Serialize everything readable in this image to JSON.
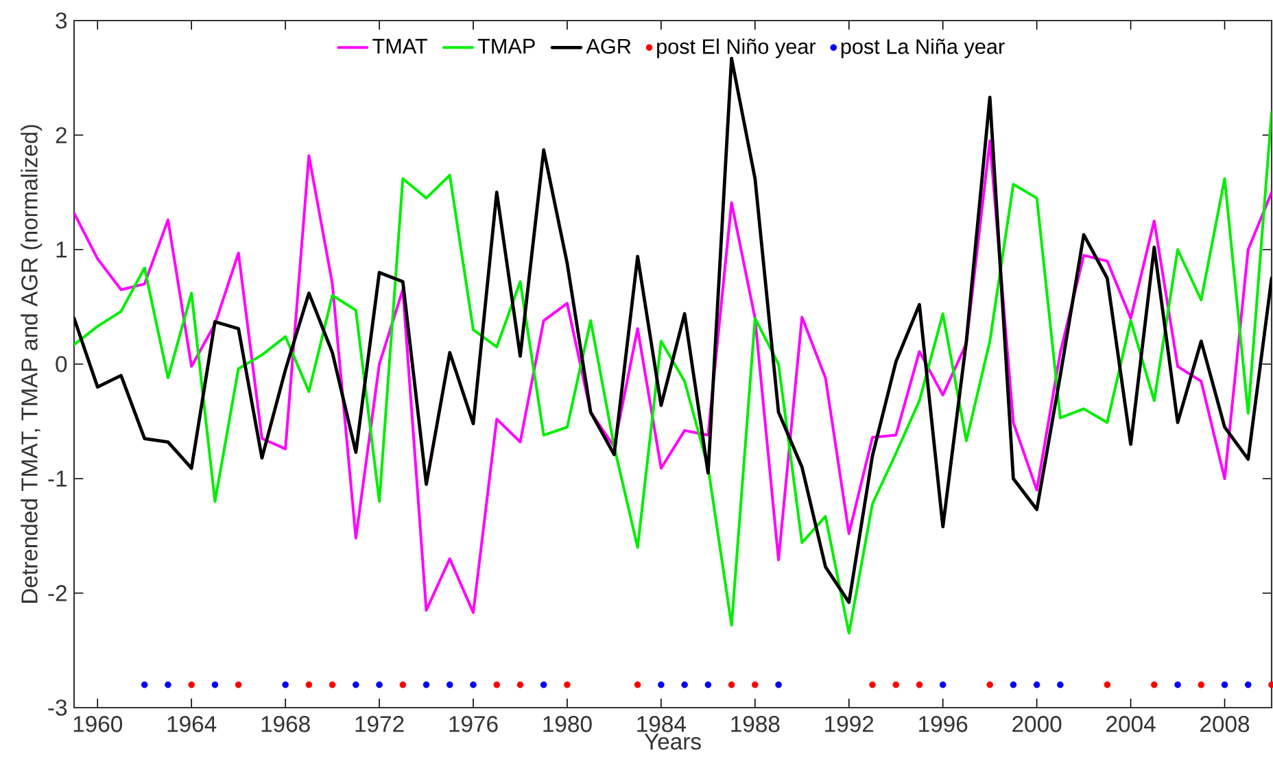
{
  "chart_data": {
    "type": "line",
    "xlabel": "Years",
    "ylabel": "Detrended TMAT, TMAP and AGR (normalized)",
    "x": [
      1959,
      1960,
      1961,
      1962,
      1963,
      1964,
      1965,
      1966,
      1967,
      1968,
      1969,
      1970,
      1971,
      1972,
      1973,
      1974,
      1975,
      1976,
      1977,
      1978,
      1979,
      1980,
      1981,
      1982,
      1983,
      1984,
      1985,
      1986,
      1987,
      1988,
      1989,
      1990,
      1991,
      1992,
      1993,
      1994,
      1995,
      1996,
      1997,
      1998,
      1999,
      2000,
      2001,
      2002,
      2003,
      2004,
      2005,
      2006,
      2007,
      2008,
      2009,
      2010
    ],
    "series": [
      {
        "name": "TMAT",
        "color": "#ff00ff",
        "values": [
          1.32,
          0.92,
          0.65,
          0.7,
          1.26,
          -0.02,
          0.35,
          0.97,
          -0.65,
          -0.74,
          1.82,
          0.7,
          -1.52,
          0.0,
          0.65,
          -2.15,
          -1.7,
          -2.17,
          -0.48,
          -0.68,
          0.38,
          0.53,
          -0.42,
          -0.72,
          0.31,
          -0.91,
          -0.58,
          -0.62,
          1.41,
          0.4,
          -1.71,
          0.41,
          -0.12,
          -1.48,
          -0.64,
          -0.62,
          0.11,
          -0.27,
          0.18,
          1.95,
          -0.51,
          -1.1,
          0.1,
          0.95,
          0.9,
          0.4,
          1.25,
          -0.02,
          -0.15,
          -1.0,
          1.0,
          1.5
        ]
      },
      {
        "name": "TMAP",
        "color": "#00ee00",
        "values": [
          0.17,
          0.33,
          0.46,
          0.84,
          -0.12,
          0.62,
          -1.2,
          -0.04,
          0.08,
          0.24,
          -0.24,
          0.6,
          0.47,
          -1.2,
          1.62,
          1.45,
          1.65,
          0.3,
          0.15,
          0.72,
          -0.62,
          -0.55,
          0.38,
          -0.72,
          -1.6,
          0.2,
          -0.15,
          -0.9,
          -2.28,
          0.4,
          0.0,
          -1.56,
          -1.33,
          -2.35,
          -1.22,
          -0.78,
          -0.32,
          0.44,
          -0.67,
          0.2,
          1.57,
          1.45,
          -0.47,
          -0.39,
          -0.51,
          0.38,
          -0.32,
          1.0,
          0.56,
          1.62,
          -0.43,
          2.2
        ]
      },
      {
        "name": "AGR",
        "color": "#000000",
        "values": [
          0.4,
          -0.2,
          -0.1,
          -0.65,
          -0.68,
          -0.91,
          0.37,
          0.31,
          -0.82,
          -0.05,
          0.62,
          0.1,
          -0.77,
          0.8,
          0.72,
          -1.05,
          0.1,
          -0.52,
          1.5,
          0.07,
          1.87,
          0.88,
          -0.42,
          -0.79,
          0.94,
          -0.36,
          0.44,
          -0.95,
          2.67,
          1.62,
          -0.42,
          -0.9,
          -1.77,
          -2.08,
          -0.8,
          0.02,
          0.52,
          -1.42,
          0.2,
          2.33,
          -1.0,
          -1.27,
          -0.1,
          1.13,
          0.75,
          -0.7,
          1.02,
          -0.51,
          0.2,
          -0.55,
          -0.83,
          0.75
        ]
      },
      {
        "name": "post El Niño year",
        "color": "#ff0000",
        "type": "scatter",
        "marker": "circle",
        "x": [
          1964,
          1966,
          1969,
          1970,
          1973,
          1977,
          1978,
          1980,
          1983,
          1987,
          1988,
          1993,
          1994,
          1995,
          1998,
          2003,
          2005,
          2007,
          2010
        ],
        "values": [
          -2.8,
          -2.8,
          -2.8,
          -2.8,
          -2.8,
          -2.8,
          -2.8,
          -2.8,
          -2.8,
          -2.8,
          -2.8,
          -2.8,
          -2.8,
          -2.8,
          -2.8,
          -2.8,
          -2.8,
          -2.8,
          -2.8
        ]
      },
      {
        "name": "post La Niña year",
        "color": "#0000ff",
        "type": "scatter",
        "marker": "circle",
        "x": [
          1962,
          1963,
          1965,
          1968,
          1971,
          1972,
          1974,
          1975,
          1976,
          1979,
          1984,
          1985,
          1986,
          1989,
          1996,
          1999,
          2000,
          2001,
          2006,
          2008,
          2009
        ],
        "values": [
          -2.8,
          -2.8,
          -2.8,
          -2.8,
          -2.8,
          -2.8,
          -2.8,
          -2.8,
          -2.8,
          -2.8,
          -2.8,
          -2.8,
          -2.8,
          -2.8,
          -2.8,
          -2.8,
          -2.8,
          -2.8,
          -2.8,
          -2.8,
          -2.8
        ]
      }
    ],
    "xlim": [
      1959,
      2010
    ],
    "ylim": [
      -3,
      3
    ],
    "xticks": [
      1960,
      1964,
      1968,
      1972,
      1976,
      1980,
      1984,
      1988,
      1992,
      1996,
      2000,
      2004,
      2008
    ],
    "yticks": [
      -3,
      -2,
      -1,
      0,
      1,
      2,
      3
    ],
    "legend": "top",
    "grid": false,
    "line_style": "solid"
  }
}
